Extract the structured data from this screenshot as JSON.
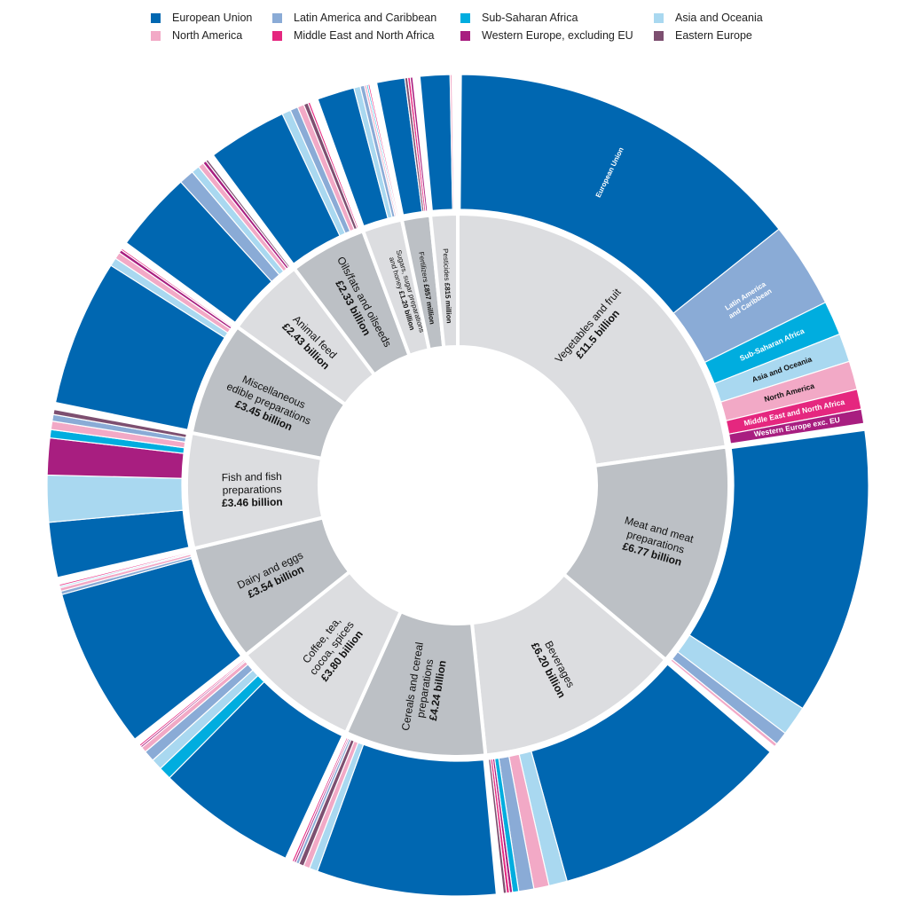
{
  "legend": [
    {
      "key": "eu",
      "label": "European Union",
      "color": "#0067b1"
    },
    {
      "key": "latam",
      "label": "Latin America and Caribbean",
      "color": "#8aabd6"
    },
    {
      "key": "ssa",
      "label": "Sub-Saharan Africa",
      "color": "#00addf"
    },
    {
      "key": "asia",
      "label": "Asia and Oceania",
      "color": "#a9d8f0"
    },
    {
      "key": "na",
      "label": "North America",
      "color": "#f2a9c6"
    },
    {
      "key": "mena",
      "label": "Middle East and North Africa",
      "color": "#e5277f"
    },
    {
      "key": "we",
      "label": "Western Europe, excluding EU",
      "color": "#a81e80"
    },
    {
      "key": "ee",
      "label": "Eastern Europe",
      "color": "#7d4f70"
    }
  ],
  "chart_data": {
    "type": "sunburst",
    "title": "",
    "unit": "£ billion",
    "inner_colors": [
      "#dcdde0",
      "#bcc0c5"
    ],
    "categories": [
      {
        "name": "Vegetables and fruit",
        "lines": [
          "Vegetables and fruit"
        ],
        "value_label": "£11.5 billion",
        "value": 11.5,
        "breakdown": [
          [
            "eu",
            0.63
          ],
          [
            "latam",
            0.15
          ],
          [
            "ssa",
            0.06
          ],
          [
            "asia",
            0.05
          ],
          [
            "na",
            0.05
          ],
          [
            "mena",
            0.035
          ],
          [
            "we",
            0.025
          ]
        ],
        "outer_labels": {
          "eu": "European Union",
          "latam": "Latin America and Caribbean",
          "ssa": "Sub-Saharan Africa",
          "asia": "Asia and Oceania",
          "na": "North America",
          "mena": "Middle East and North Africa",
          "we": "Western Europe exc. EU"
        }
      },
      {
        "name": "Meat and meat preparations",
        "lines": [
          "Meat and meat",
          "preparations"
        ],
        "value_label": "£6.77 billion",
        "value": 6.77,
        "breakdown": [
          [
            "eu",
            0.86
          ],
          [
            "asia",
            0.09
          ],
          [
            "latam",
            0.04
          ],
          [
            "na",
            0.01
          ]
        ]
      },
      {
        "name": "Beverages",
        "lines": [
          "Beverages"
        ],
        "value_label": "£6.20 billion",
        "value": 6.2,
        "breakdown": [
          [
            "eu",
            0.79
          ],
          [
            "asia",
            0.06
          ],
          [
            "na",
            0.05
          ],
          [
            "latam",
            0.05
          ],
          [
            "ssa",
            0.02
          ],
          [
            "we",
            0.01
          ],
          [
            "mena",
            0.01
          ],
          [
            "ee",
            0.01
          ]
        ]
      },
      {
        "name": "Cereals and cereal preparations",
        "lines": [
          "Cereals and cereal",
          "preparations"
        ],
        "value_label": "£4.24 billion",
        "value": 4.24,
        "breakdown": [
          [
            "eu",
            0.87
          ],
          [
            "asia",
            0.04
          ],
          [
            "na",
            0.03
          ],
          [
            "ee",
            0.025
          ],
          [
            "latam",
            0.015
          ],
          [
            "we",
            0.01
          ],
          [
            "mena",
            0.01
          ]
        ]
      },
      {
        "name": "Coffee, tea, cocoa, spices",
        "lines": [
          "Coffee, tea,",
          "cocoa, spices"
        ],
        "value_label": "£3.80 billion",
        "value": 3.8,
        "breakdown": [
          [
            "eu",
            0.76
          ],
          [
            "ssa",
            0.07
          ],
          [
            "asia",
            0.06
          ],
          [
            "latam",
            0.06
          ],
          [
            "na",
            0.03
          ],
          [
            "we",
            0.01
          ],
          [
            "mena",
            0.01
          ]
        ]
      },
      {
        "name": "Dairy and eggs",
        "lines": [
          "Dairy and eggs"
        ],
        "value_label": "£3.54 billion",
        "value": 3.54,
        "breakdown": [
          [
            "eu",
            0.94
          ],
          [
            "latam",
            0.02
          ],
          [
            "na",
            0.02
          ],
          [
            "asia",
            0.01
          ],
          [
            "mena",
            0.01
          ]
        ]
      },
      {
        "name": "Fish and fish preparations",
        "lines": [
          "Fish and fish",
          "preparations"
        ],
        "value_label": "£3.46 billion",
        "value": 3.46,
        "breakdown": [
          [
            "eu",
            0.33
          ],
          [
            "asia",
            0.28
          ],
          [
            "we",
            0.22
          ],
          [
            "ssa",
            0.05
          ],
          [
            "na",
            0.05
          ],
          [
            "latam",
            0.04
          ],
          [
            "ee",
            0.03
          ]
        ]
      },
      {
        "name": "Miscellaneous edible preparations",
        "lines": [
          "Miscellaneous",
          "edible preparations"
        ],
        "value_label": "£3.45 billion",
        "value": 3.45,
        "breakdown": [
          [
            "eu",
            0.88
          ],
          [
            "asia",
            0.05
          ],
          [
            "na",
            0.04
          ],
          [
            "we",
            0.02
          ],
          [
            "mena",
            0.01
          ]
        ]
      },
      {
        "name": "Animal feed",
        "lines": [
          "Animal feed"
        ],
        "value_label": "£2.43 billion",
        "value": 2.43,
        "breakdown": [
          [
            "eu",
            0.7
          ],
          [
            "latam",
            0.13
          ],
          [
            "asia",
            0.07
          ],
          [
            "na",
            0.05
          ],
          [
            "we",
            0.03
          ],
          [
            "ee",
            0.02
          ]
        ]
      },
      {
        "name": "Oils/fats and oilseeds",
        "lines": [
          "Oils/fats and oilseeds"
        ],
        "value_label": "£2.33 billion",
        "value": 2.33,
        "breakdown": [
          [
            "eu",
            0.72
          ],
          [
            "asia",
            0.08
          ],
          [
            "latam",
            0.07
          ],
          [
            "na",
            0.06
          ],
          [
            "ee",
            0.04
          ],
          [
            "mena",
            0.02
          ],
          [
            "we",
            0.01
          ]
        ]
      },
      {
        "name": "Sugars, sugar preparations and honey",
        "lines": [
          "Sugars, sugar preparations",
          "and honey"
        ],
        "value_label": "£1.20 billion",
        "value": 1.2,
        "small": true,
        "breakdown": [
          [
            "eu",
            0.7
          ],
          [
            "asia",
            0.12
          ],
          [
            "latam",
            0.08
          ],
          [
            "na",
            0.04
          ],
          [
            "ssa",
            0.03
          ],
          [
            "mena",
            0.03
          ]
        ]
      },
      {
        "name": "Fertilizers",
        "lines": [
          "Fertilizers"
        ],
        "value_label": "£857 million",
        "value": 0.857,
        "small": true,
        "breakdown": [
          [
            "eu",
            0.78
          ],
          [
            "ee",
            0.08
          ],
          [
            "mena",
            0.07
          ],
          [
            "we",
            0.07
          ]
        ]
      },
      {
        "name": "Pesticides",
        "lines": [
          "Pesticides"
        ],
        "value_label": "£815 million",
        "value": 0.815,
        "small": true,
        "breakdown": [
          [
            "eu",
            0.88
          ],
          [
            "na",
            0.06
          ],
          [
            "asia",
            0.03
          ],
          [
            "latam",
            0.03
          ]
        ]
      }
    ]
  }
}
